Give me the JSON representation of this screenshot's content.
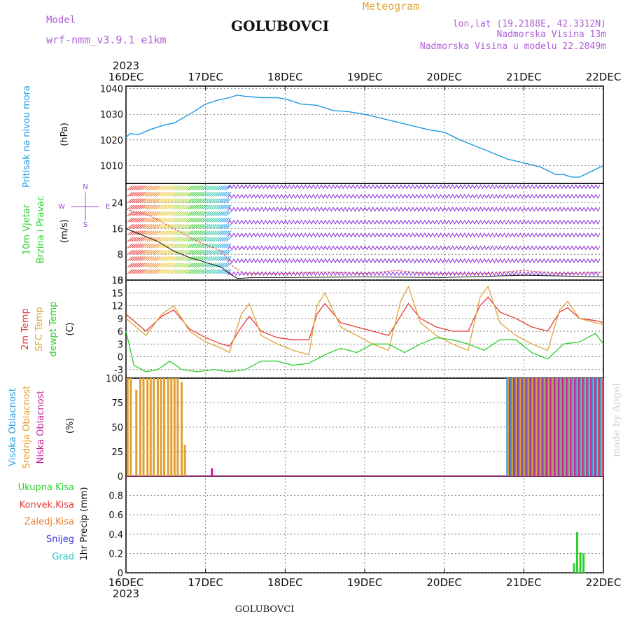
{
  "header": {
    "model_label": "Model",
    "model_name": "wrf-nmm_v3.9.1 e1km",
    "station": "GOLUBOVCI",
    "meteogram": "Meteogram",
    "lonlat": "lon,lat (19.2188E, 42.3312N)",
    "elevation": "Nadmorska Visina 13m",
    "model_elevation": "Nadmorska Visina u modelu 22.2849m",
    "footer_station": "GOLUBOVCI",
    "credit": "made by Angel"
  },
  "time_axis": {
    "year": "2023",
    "ticks": [
      "16DEC",
      "17DEC",
      "18DEC",
      "19DEC",
      "20DEC",
      "21DEC",
      "22DEC"
    ]
  },
  "colors": {
    "pressure": "#1e9be0",
    "t2m": "#e83a3a",
    "sfc": "#dea43a",
    "dewpt": "#2ccf2c",
    "high_cloud": "#2a9ee0",
    "mid_cloud": "#e0a030",
    "low_cloud": "#c81e9a",
    "wind_legend": "#9b4fd9",
    "total_rain": "#2ccf2c",
    "conv_rain": "#e83a3a",
    "frz_rain": "#f07a30",
    "snow": "#3a3ae0",
    "hail": "#2ac8c8"
  },
  "panels": {
    "pressure": {
      "label_line1": "Pritisak na nivou mora",
      "unit": "(hPa)",
      "yticks": [
        "1040",
        "1030",
        "1020",
        "1010"
      ]
    },
    "wind": {
      "label_line1": "10m Vjetar",
      "label_line2": "Brzina i Pravac",
      "unit": "(m/s)",
      "yticks": [
        "24",
        "16",
        "8",
        "0"
      ],
      "compass_n": "N",
      "compass_s": "S",
      "compass_w": "W",
      "compass_e": "E"
    },
    "temperature": {
      "label_line1": "2m Temp",
      "label_line2": "SFC Temp",
      "label_line3": "dewpt Temp",
      "unit": "(C)",
      "yticks": [
        "18",
        "15",
        "12",
        "9",
        "6",
        "3",
        "0",
        "-3"
      ]
    },
    "cloud": {
      "label_line1": "Visoka Oblacnost",
      "label_line2": "Srednja Oblacnost",
      "label_line3": "Niska Oblacnost",
      "unit": "(%)",
      "yticks": [
        "100",
        "75",
        "50",
        "25",
        "0"
      ]
    },
    "precip": {
      "legend_total": "Ukupna Kisa",
      "legend_conv": "Konvek.Kisa",
      "legend_frz": "Zaledj.Kisa",
      "legend_snow": "Snijeg",
      "legend_hail": "Grad",
      "unit": "1hr Precip (mm)",
      "yticks": [
        "0.8",
        "0.6",
        "0.4",
        "0.2",
        "0"
      ]
    }
  },
  "chart_data": [
    {
      "type": "line",
      "name": "pressure",
      "x_unit": "days since 16DEC 00Z",
      "ylim": [
        1003,
        1041
      ],
      "x": [
        0,
        0.05,
        0.15,
        0.3,
        0.5,
        0.6,
        0.8,
        1.0,
        1.15,
        1.3,
        1.4,
        1.5,
        1.7,
        1.9,
        2.0,
        2.2,
        2.4,
        2.6,
        2.8,
        3.0,
        3.2,
        3.4,
        3.6,
        3.8,
        4.0,
        4.2,
        4.4,
        4.6,
        4.8,
        5.0,
        5.2,
        5.4,
        5.5,
        5.6,
        5.7,
        5.8,
        6.0
      ],
      "values": [
        1021,
        1022.5,
        1022,
        1024,
        1026,
        1026.5,
        1030,
        1034,
        1035.5,
        1036.5,
        1037.5,
        1037,
        1036.5,
        1036.5,
        1036,
        1034,
        1033.5,
        1031.5,
        1031,
        1030,
        1028.5,
        1027,
        1025.5,
        1024,
        1023,
        1020,
        1017.5,
        1015,
        1012.5,
        1011,
        1009.5,
        1006.5,
        1006.5,
        1005.5,
        1005.5,
        1007,
        1010
      ]
    },
    {
      "type": "line",
      "name": "temperature",
      "x_unit": "days since 16DEC 00Z",
      "ylim": [
        -5,
        18
      ],
      "series": [
        {
          "name": "2m Temp",
          "x": [
            0,
            0.25,
            0.45,
            0.6,
            0.8,
            1.0,
            1.2,
            1.3,
            1.45,
            1.55,
            1.7,
            1.9,
            2.1,
            2.3,
            2.4,
            2.5,
            2.7,
            2.9,
            3.1,
            3.3,
            3.45,
            3.55,
            3.7,
            3.9,
            4.1,
            4.3,
            4.45,
            4.55,
            4.7,
            4.9,
            5.1,
            5.3,
            5.45,
            5.55,
            5.7,
            5.9,
            6.0
          ],
          "values": [
            10,
            6,
            9.5,
            11,
            6.5,
            4.5,
            3,
            2.5,
            7,
            9.5,
            6,
            4.5,
            4,
            4,
            10,
            12.5,
            8,
            7,
            6,
            5,
            9.5,
            12.5,
            9,
            7,
            6,
            6,
            12,
            14,
            10.5,
            9,
            7,
            6,
            10.5,
            11.5,
            9,
            8.5,
            8
          ]
        },
        {
          "name": "SFC Temp",
          "x": [
            0,
            0.25,
            0.45,
            0.6,
            0.8,
            1.0,
            1.2,
            1.3,
            1.45,
            1.55,
            1.7,
            1.9,
            2.1,
            2.3,
            2.4,
            2.5,
            2.7,
            2.9,
            3.1,
            3.3,
            3.45,
            3.55,
            3.7,
            3.9,
            4.1,
            4.3,
            4.45,
            4.55,
            4.7,
            4.9,
            5.1,
            5.3,
            5.45,
            5.55,
            5.7,
            5.9,
            6.0
          ],
          "values": [
            9,
            5,
            10,
            12,
            6,
            3.5,
            2,
            1,
            10,
            12.5,
            5,
            3,
            1.5,
            0.5,
            12,
            15,
            7,
            5,
            3,
            1.5,
            13,
            16.5,
            8,
            5,
            3,
            1.5,
            14,
            16.5,
            8,
            5,
            3,
            1.5,
            11,
            13,
            9,
            8,
            7.5
          ]
        },
        {
          "name": "dewpt Temp",
          "x": [
            0,
            0.1,
            0.25,
            0.4,
            0.55,
            0.7,
            0.9,
            1.1,
            1.3,
            1.5,
            1.7,
            1.9,
            2.1,
            2.3,
            2.5,
            2.7,
            2.9,
            3.1,
            3.3,
            3.5,
            3.7,
            3.9,
            4.1,
            4.3,
            4.5,
            4.7,
            4.9,
            5.1,
            5.3,
            5.5,
            5.7,
            5.9,
            6.0
          ],
          "values": [
            6,
            -2,
            -3.5,
            -3,
            -1,
            -3,
            -3.5,
            -3,
            -3.5,
            -3,
            -1,
            -1,
            -2,
            -1.5,
            0.5,
            2,
            1,
            3,
            3,
            1,
            3,
            4.5,
            4,
            3,
            1.5,
            4,
            4,
            1,
            -0.5,
            3,
            3.5,
            5.5,
            3
          ]
        }
      ]
    },
    {
      "type": "bar",
      "name": "cloud",
      "ylim": [
        0,
        100
      ],
      "series": [
        {
          "name": "Srednja Oblacnost",
          "x": [
            0.02,
            0.06,
            0.13,
            0.18,
            0.22,
            0.27,
            0.31,
            0.35,
            0.4,
            0.44,
            0.48,
            0.53,
            0.57,
            0.61,
            0.65,
            0.7,
            0.74
          ],
          "values": [
            100,
            100,
            88,
            100,
            100,
            100,
            100,
            100,
            100,
            100,
            100,
            100,
            100,
            100,
            100,
            96,
            32
          ]
        },
        {
          "name": "Niska Oblacnost",
          "x": [
            1.08
          ],
          "values": [
            8
          ]
        }
      ],
      "dense_segment": {
        "start": 4.78,
        "end": 6.0,
        "value": 100
      }
    },
    {
      "type": "bar",
      "name": "precip",
      "ylim": [
        0,
        1.0
      ],
      "series": [
        {
          "name": "Ukupna Kisa",
          "x": [
            5.63,
            5.67,
            5.71,
            5.75
          ],
          "values": [
            0.1,
            0.42,
            0.21,
            0.2
          ]
        }
      ]
    }
  ]
}
